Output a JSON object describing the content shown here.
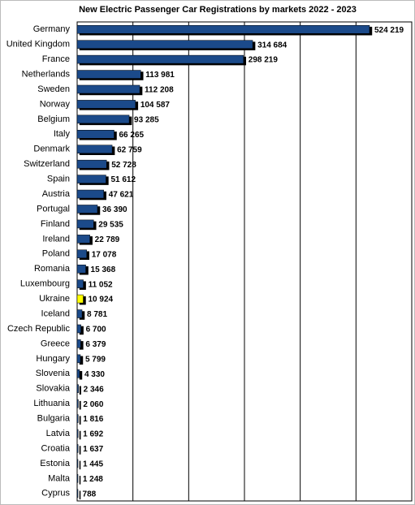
{
  "chart_data": {
    "type": "hbar",
    "title": "New Electric Passenger Car Registrations by markets 2022 - 2023",
    "categories": [
      "Germany",
      "United Kingdom",
      "France",
      "Netherlands",
      "Sweden",
      "Norway",
      "Belgium",
      "Italy",
      "Denmark",
      "Switzerland",
      "Spain",
      "Austria",
      "Portugal",
      "Finland",
      "Ireland",
      "Poland",
      "Romania",
      "Luxembourg",
      "Ukraine",
      "Iceland",
      "Czech Republic",
      "Greece",
      "Hungary",
      "Slovenia",
      "Slovakia",
      "Lithuania",
      "Bulgaria",
      "Latvia",
      "Croatia",
      "Estonia",
      "Malta",
      "Cyprus"
    ],
    "values": [
      524219,
      314684,
      298219,
      113981,
      112208,
      104587,
      93285,
      66265,
      62759,
      52728,
      51612,
      47621,
      36390,
      29535,
      22789,
      17078,
      15368,
      11052,
      10924,
      8781,
      6700,
      6379,
      5799,
      4330,
      2346,
      2060,
      1816,
      1692,
      1637,
      1445,
      1248,
      788
    ],
    "value_labels": [
      "524 219",
      "314 684",
      "298 219",
      "113 981",
      "112 208",
      "104 587",
      "93 285",
      "66 265",
      "62 759",
      "52 728",
      "51 612",
      "47 621",
      "36 390",
      "29 535",
      "22 789",
      "17 078",
      "15 368",
      "11 052",
      "10 924",
      "8 781",
      "6 700",
      "6 379",
      "5 799",
      "4 330",
      "2 346",
      "2 060",
      "1 816",
      "1 692",
      "1 637",
      "1 445",
      "1 248",
      "788"
    ],
    "colors": [
      "#1b4a8a",
      "#1b4a8a",
      "#1b4a8a",
      "#1b4a8a",
      "#1b4a8a",
      "#1b4a8a",
      "#1b4a8a",
      "#1b4a8a",
      "#1b4a8a",
      "#1b4a8a",
      "#1b4a8a",
      "#1b4a8a",
      "#1b4a8a",
      "#1b4a8a",
      "#1b4a8a",
      "#1b4a8a",
      "#1b4a8a",
      "#1b4a8a",
      "#ffff00",
      "#1b4a8a",
      "#1b4a8a",
      "#1b4a8a",
      "#1b4a8a",
      "#1b4a8a",
      "#1b4a8a",
      "#1b4a8a",
      "#1b4a8a",
      "#1b4a8a",
      "#1b4a8a",
      "#1b4a8a",
      "#1b4a8a",
      "#1b4a8a"
    ],
    "xlim": [
      0,
      600000
    ],
    "xticks": [
      0,
      100000,
      200000,
      300000,
      400000,
      500000,
      600000
    ],
    "grid": true
  }
}
